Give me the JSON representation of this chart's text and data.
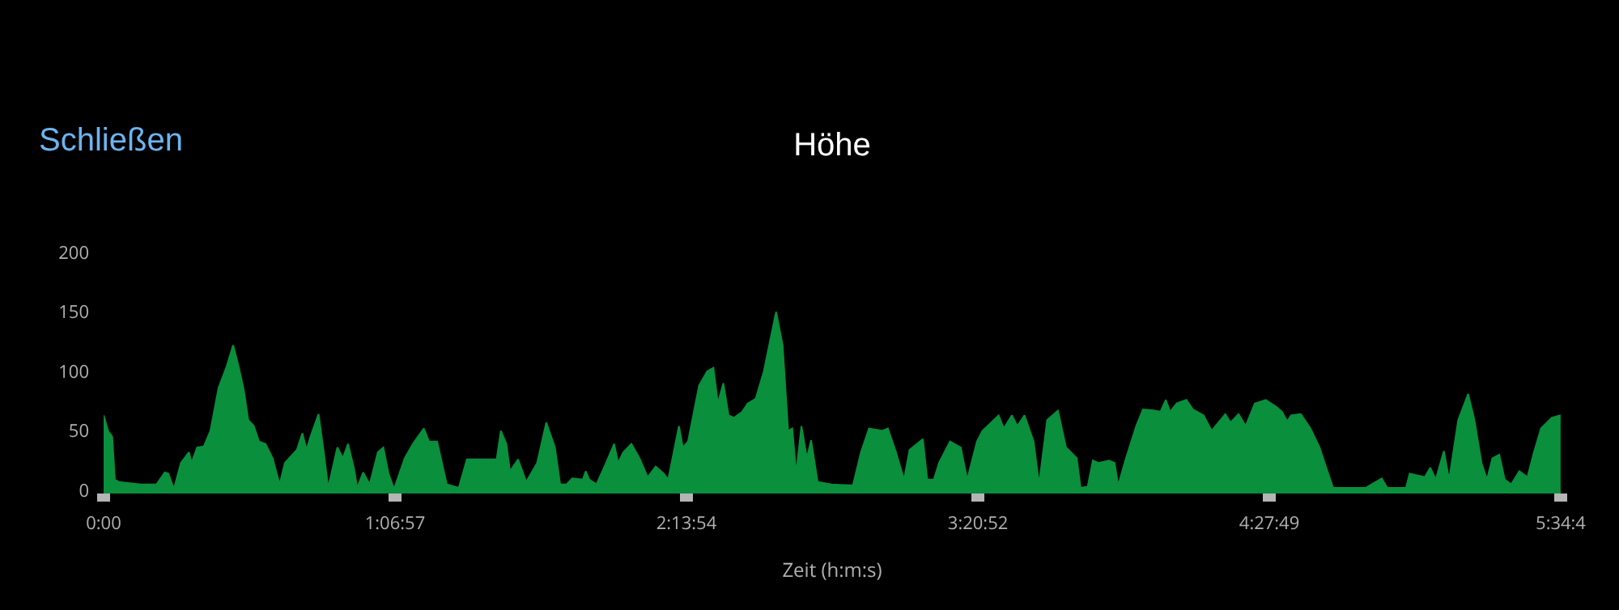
{
  "chart_data": {
    "type": "area",
    "title": "Höhe",
    "xlabel": "Zeit (h:m:s)",
    "annotations": [
      "Schließen"
    ],
    "x": [
      0,
      0.017,
      0.033,
      0.043,
      0.058,
      0.141,
      0.203,
      0.234,
      0.248,
      0.269,
      0.296,
      0.327,
      0.337,
      0.358,
      0.384,
      0.409,
      0.44,
      0.471,
      0.496,
      0.517,
      0.537,
      0.554,
      0.575,
      0.595,
      0.62,
      0.647,
      0.674,
      0.694,
      0.74,
      0.761,
      0.777,
      0.792,
      0.823,
      0.843,
      0.86,
      0.895,
      0.916,
      0.936,
      0.959,
      0.971,
      0.994,
      1.019,
      1.05,
      1.071,
      1.091,
      1.112,
      1.153,
      1.184,
      1.226,
      1.246,
      1.277,
      1.314,
      1.36,
      1.391,
      1.505,
      1.521,
      1.542,
      1.556,
      1.587,
      1.618,
      1.66,
      1.695,
      1.728,
      1.748,
      1.773,
      1.794,
      1.835,
      1.846,
      1.86,
      1.887,
      1.918,
      1.955,
      1.97,
      1.99,
      2.021,
      2.052,
      2.083,
      2.114,
      2.145,
      2.162,
      2.203,
      2.218,
      2.238,
      2.28,
      2.311,
      2.335,
      2.352,
      2.373,
      2.393,
      2.414,
      2.445,
      2.466,
      2.497,
      2.528,
      2.575,
      2.6,
      2.621,
      2.637,
      2.652,
      2.672,
      2.693,
      2.709,
      2.734,
      2.786,
      2.869,
      2.9,
      2.931,
      2.982,
      3.003,
      3.034,
      3.065,
      3.086,
      3.137,
      3.154,
      3.179,
      3.199,
      3.241,
      3.282,
      3.307,
      3.344,
      3.365,
      3.427,
      3.447,
      3.478,
      3.499,
      3.526,
      3.561,
      3.582,
      3.613,
      3.654,
      3.685,
      3.726,
      3.741,
      3.768,
      3.788,
      3.809,
      3.85,
      3.871,
      3.885,
      3.912,
      3.954,
      3.98,
      4.026,
      4.047,
      4.067,
      4.084,
      4.109,
      4.146,
      4.171,
      4.212,
      4.243,
      4.295,
      4.315,
      4.346,
      4.373,
      4.408,
      4.45,
      4.491,
      4.512,
      4.532,
      4.547,
      4.584,
      4.621,
      4.656,
      4.683,
      4.708,
      4.832,
      4.894,
      4.915,
      4.987,
      5.001,
      5.059,
      5.08,
      5.101,
      5.132,
      5.152,
      5.187,
      5.225,
      5.249,
      5.276,
      5.297,
      5.318,
      5.344,
      5.365,
      5.39,
      5.421,
      5.452,
      5.477,
      5.504,
      5.545,
      5.576,
      5.579
    ],
    "series": [
      {
        "color": "#0a8f3d",
        "values": [
          63,
          50,
          45,
          9,
          7,
          5,
          5,
          15,
          14,
          1,
          23,
          32,
          23,
          36,
          37,
          50,
          86,
          104,
          122,
          104,
          84,
          59,
          54,
          41,
          39,
          27,
          5,
          23,
          34,
          48,
          34,
          45,
          64,
          32,
          2,
          36,
          27,
          39,
          18,
          2,
          15,
          5,
          32,
          36,
          14,
          1,
          27,
          39,
          52,
          41,
          41,
          5,
          2,
          26,
          26,
          50,
          39,
          16,
          26,
          7,
          23,
          57,
          36,
          5,
          5,
          10,
          9,
          16,
          9,
          5,
          20,
          39,
          23,
          32,
          39,
          27,
          11,
          20,
          14,
          9,
          54,
          36,
          41,
          88,
          100,
          103,
          73,
          90,
          63,
          61,
          66,
          73,
          77,
          100,
          150,
          122,
          50,
          52,
          14,
          54,
          27,
          42,
          7,
          5,
          4,
          32,
          52,
          50,
          52,
          32,
          9,
          34,
          43,
          9,
          9,
          23,
          41,
          36,
          9,
          41,
          50,
          63,
          52,
          63,
          54,
          63,
          41,
          5,
          59,
          67,
          36,
          27,
          2,
          3,
          25,
          23,
          25,
          23,
          4,
          25,
          54,
          68,
          67,
          66,
          76,
          66,
          73,
          76,
          68,
          63,
          50,
          64,
          57,
          64,
          54,
          73,
          76,
          70,
          66,
          58,
          63,
          64,
          52,
          36,
          18,
          2,
          2,
          10,
          2,
          2,
          14,
          11,
          19,
          9,
          33,
          9,
          59,
          81,
          59,
          23,
          9,
          27,
          30,
          9,
          5,
          16,
          11,
          32,
          52,
          61,
          63,
          63
        ]
      }
    ],
    "xlim": [
      0,
      5.5794
    ],
    "xticks": [
      {
        "value": 0,
        "label": "0:00"
      },
      {
        "value": 1.1158,
        "label": "1:06:57"
      },
      {
        "value": 2.2317,
        "label": "2:13:54"
      },
      {
        "value": 3.3478,
        "label": "3:20:52"
      },
      {
        "value": 4.4636,
        "label": "4:27:49"
      },
      {
        "value": 5.5794,
        "label": "5:34:4"
      }
    ],
    "ylim": [
      0,
      200
    ],
    "yticks": [
      0,
      50,
      100,
      150,
      200
    ],
    "grid": false,
    "marker": "none",
    "line_style": "solid"
  }
}
